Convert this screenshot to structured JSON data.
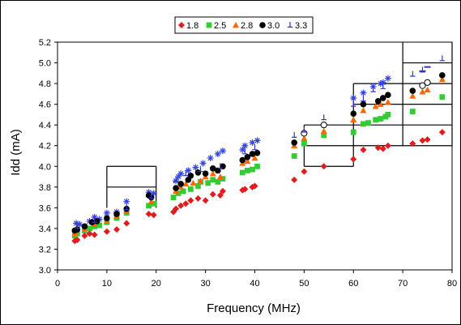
{
  "chart_data": {
    "type": "scatter",
    "title": "",
    "xlabel": "Frequency (MHz)",
    "ylabel": "Idd (mA)",
    "xlim": [
      0,
      80
    ],
    "ylim": [
      3.0,
      5.2
    ],
    "xticks": [
      0,
      10,
      20,
      30,
      40,
      50,
      60,
      70,
      80
    ],
    "yticks": [
      3.0,
      3.2,
      3.4,
      3.6,
      3.8,
      4.0,
      4.2,
      4.4,
      4.6,
      4.8,
      5.0,
      5.2
    ],
    "xtick_labels": [
      "0",
      "10",
      "20",
      "30",
      "40",
      "50",
      "60",
      "70",
      "80"
    ],
    "ytick_labels": [
      "3.0",
      "3.2",
      "3.4",
      "3.6",
      "3.8",
      "4.0",
      "4.2",
      "4.4",
      "4.6",
      "4.8",
      "5.0",
      "5.2"
    ],
    "grid": "partial staircase",
    "legend_position": "top",
    "colors": {
      "s18": "#e41a1c",
      "s25": "#33cc33",
      "s28": "#ff6600",
      "s30": "#000000",
      "s33": "#3333cc",
      "s33b": "#3344dd"
    },
    "series": [
      {
        "name": "1.8",
        "marker": "diamond",
        "color": "#e41a1c",
        "points": [
          [
            3.5,
            3.28
          ],
          [
            4,
            3.29
          ],
          [
            5.5,
            3.33
          ],
          [
            6.5,
            3.35
          ],
          [
            7.5,
            3.34
          ],
          [
            10,
            3.37
          ],
          [
            12,
            3.39
          ],
          [
            14,
            3.45
          ],
          [
            18.5,
            3.54
          ],
          [
            19.5,
            3.53
          ],
          [
            23.5,
            3.56
          ],
          [
            24,
            3.59
          ],
          [
            25,
            3.62
          ],
          [
            26,
            3.64
          ],
          [
            27,
            3.67
          ],
          [
            28.5,
            3.69
          ],
          [
            30,
            3.67
          ],
          [
            31.5,
            3.73
          ],
          [
            33,
            3.72
          ],
          [
            33.5,
            3.76
          ],
          [
            37.5,
            3.77
          ],
          [
            38,
            3.78
          ],
          [
            39.5,
            3.8
          ],
          [
            40,
            3.81
          ],
          [
            48,
            3.87
          ],
          [
            50,
            3.95
          ],
          [
            54,
            4.0
          ],
          [
            60,
            4.07
          ],
          [
            62,
            4.16
          ],
          [
            65,
            4.18
          ],
          [
            66,
            4.17
          ],
          [
            67,
            4.2
          ],
          [
            72,
            4.22
          ],
          [
            74,
            4.25
          ],
          [
            75,
            4.26
          ],
          [
            78,
            4.33
          ]
        ]
      },
      {
        "name": "2.5",
        "marker": "square",
        "color": "#33cc33",
        "points": [
          [
            3.5,
            3.33
          ],
          [
            4,
            3.35
          ],
          [
            5.5,
            3.38
          ],
          [
            6.5,
            3.4
          ],
          [
            7.5,
            3.42
          ],
          [
            8.5,
            3.43
          ],
          [
            10,
            3.46
          ],
          [
            12,
            3.5
          ],
          [
            14,
            3.55
          ],
          [
            18.5,
            3.62
          ],
          [
            19.5,
            3.64
          ],
          [
            23.5,
            3.7
          ],
          [
            24.5,
            3.74
          ],
          [
            25.5,
            3.76
          ],
          [
            27,
            3.78
          ],
          [
            28.5,
            3.81
          ],
          [
            29,
            3.85
          ],
          [
            30.5,
            3.84
          ],
          [
            31.5,
            3.87
          ],
          [
            32.5,
            3.85
          ],
          [
            33.5,
            3.88
          ],
          [
            37.5,
            3.94
          ],
          [
            38.5,
            3.96
          ],
          [
            39.5,
            3.97
          ],
          [
            40.5,
            4.0
          ],
          [
            48,
            4.1
          ],
          [
            50,
            4.22
          ],
          [
            54,
            4.3
          ],
          [
            60,
            4.33
          ],
          [
            62,
            4.41
          ],
          [
            63,
            4.42
          ],
          [
            64.5,
            4.45
          ],
          [
            65.5,
            4.46
          ],
          [
            66.5,
            4.48
          ],
          [
            67,
            4.5
          ],
          [
            72,
            4.53
          ],
          [
            78,
            4.67
          ]
        ]
      },
      {
        "name": "2.8",
        "marker": "triangle",
        "color": "#ff6600",
        "points": [
          [
            3.5,
            3.35
          ],
          [
            5.5,
            3.4
          ],
          [
            7.5,
            3.44
          ],
          [
            10,
            3.47
          ],
          [
            12,
            3.52
          ],
          [
            14,
            3.57
          ],
          [
            19,
            3.66
          ],
          [
            24,
            3.76
          ],
          [
            25,
            3.8
          ],
          [
            26,
            3.83
          ],
          [
            27.5,
            3.84
          ],
          [
            29,
            3.86
          ],
          [
            30,
            3.9
          ],
          [
            31.5,
            3.93
          ],
          [
            33,
            3.9
          ],
          [
            37.5,
            4.03
          ],
          [
            38.5,
            4.05
          ],
          [
            40,
            4.08
          ],
          [
            48,
            4.2
          ],
          [
            50,
            4.27
          ],
          [
            54,
            4.34
          ],
          [
            60,
            4.45
          ],
          [
            62,
            4.54
          ],
          [
            64.5,
            4.58
          ],
          [
            65.5,
            4.6
          ],
          [
            67,
            4.62
          ],
          [
            72,
            4.68
          ],
          [
            74,
            4.72
          ],
          [
            75,
            4.74
          ],
          [
            78,
            4.84
          ]
        ]
      },
      {
        "name": "3.0",
        "marker": "circle",
        "color": "#000000",
        "points": [
          [
            3.5,
            3.38
          ],
          [
            4,
            3.39
          ],
          [
            5.5,
            3.42
          ],
          [
            7,
            3.46
          ],
          [
            8,
            3.47
          ],
          [
            10,
            3.5
          ],
          [
            12,
            3.54
          ],
          [
            14,
            3.59
          ],
          [
            18.5,
            3.72
          ],
          [
            19,
            3.7
          ],
          [
            24,
            3.79
          ],
          [
            25,
            3.83
          ],
          [
            26.5,
            3.87
          ],
          [
            27,
            3.91
          ],
          [
            28.5,
            3.94
          ],
          [
            30,
            3.93
          ],
          [
            31.5,
            3.98
          ],
          [
            32.5,
            3.96
          ],
          [
            33.5,
            4.0
          ],
          [
            37.5,
            4.06
          ],
          [
            38.5,
            4.09
          ],
          [
            39.5,
            4.12
          ],
          [
            40.5,
            4.13
          ],
          [
            48,
            4.23
          ],
          [
            54,
            4.4
          ],
          [
            60,
            4.51
          ],
          [
            62,
            4.6
          ],
          [
            65,
            4.63
          ],
          [
            66,
            4.66
          ],
          [
            67,
            4.69
          ],
          [
            72,
            4.73
          ],
          [
            78,
            4.88
          ]
        ]
      },
      {
        "name": "3.0 (hollow)",
        "marker": "circle-open",
        "color": "#000000",
        "points": [
          [
            50,
            4.32
          ],
          [
            54,
            4.4
          ],
          [
            74,
            4.78
          ],
          [
            75,
            4.81
          ]
        ]
      },
      {
        "name": "3.3",
        "marker": "perp",
        "color": "#3333cc",
        "points": [
          [
            4,
            3.42
          ],
          [
            7.5,
            3.48
          ],
          [
            14,
            3.6
          ],
          [
            19,
            3.71
          ],
          [
            24,
            3.87
          ],
          [
            26,
            3.93
          ],
          [
            29,
            3.97
          ],
          [
            33,
            4.0
          ],
          [
            38,
            4.14
          ],
          [
            40,
            4.18
          ],
          [
            48,
            4.3
          ],
          [
            50,
            4.35
          ],
          [
            54,
            4.47
          ],
          [
            60,
            4.6
          ],
          [
            62,
            4.65
          ],
          [
            64,
            4.74
          ],
          [
            66,
            4.77
          ],
          [
            72,
            4.89
          ],
          [
            74,
            4.93
          ],
          [
            78,
            5.04
          ]
        ]
      },
      {
        "name": "3.3 (star)",
        "marker": "star",
        "color": "#3344dd",
        "points": [
          [
            3.8,
            3.45
          ],
          [
            4.5,
            3.44
          ],
          [
            6.5,
            3.47
          ],
          [
            7.5,
            3.51
          ],
          [
            8.5,
            3.49
          ],
          [
            10,
            3.55
          ],
          [
            12,
            3.56
          ],
          [
            14,
            3.66
          ],
          [
            18.5,
            3.75
          ],
          [
            19.5,
            3.74
          ],
          [
            24,
            3.86
          ],
          [
            24.5,
            3.9
          ],
          [
            25,
            3.93
          ],
          [
            26.5,
            3.96
          ],
          [
            28,
            3.99
          ],
          [
            29.5,
            4.03
          ],
          [
            31,
            4.08
          ],
          [
            32.5,
            4.12
          ],
          [
            33.5,
            4.15
          ],
          [
            37.5,
            4.16
          ],
          [
            38,
            4.2
          ],
          [
            39.5,
            4.23
          ],
          [
            40.5,
            4.25
          ],
          [
            60,
            4.66
          ],
          [
            62,
            4.71
          ],
          [
            64,
            4.77
          ],
          [
            65.5,
            4.8
          ],
          [
            66,
            4.81
          ],
          [
            67,
            4.85
          ]
        ]
      },
      {
        "name": "3.3 (dash)",
        "marker": "dash",
        "color": "#3333cc",
        "points": [
          [
            74,
            4.92
          ],
          [
            75,
            4.96
          ]
        ]
      }
    ],
    "legend": [
      {
        "label": "1.8",
        "marker": "diamond",
        "color": "#e41a1c"
      },
      {
        "label": "2.5",
        "marker": "square",
        "color": "#33cc33"
      },
      {
        "label": "2.8",
        "marker": "triangle",
        "color": "#ff6600"
      },
      {
        "label": "3.0",
        "marker": "circle",
        "color": "#000000"
      },
      {
        "label": "3.3",
        "marker": "perp",
        "color": "#3333cc"
      }
    ],
    "grid_vlines": [
      {
        "x": 10,
        "y0": 3.6,
        "y1": 3.8
      },
      {
        "x": 10,
        "y0": 3.8,
        "y1": 4.0
      },
      {
        "x": 20,
        "y0": 3.6,
        "y1": 4.0
      },
      {
        "x": 50,
        "y0": 4.0,
        "y1": 4.4
      },
      {
        "x": 60,
        "y0": 4.0,
        "y1": 4.8
      },
      {
        "x": 70,
        "y0": 4.2,
        "y1": 5.2
      },
      {
        "x": 80,
        "y0": 4.2,
        "y1": 5.2
      }
    ],
    "grid_hlines": [
      {
        "y": 3.8,
        "x0": 10,
        "x1": 20
      },
      {
        "y": 4.0,
        "x0": 10,
        "x1": 20
      },
      {
        "y": 4.0,
        "x0": 50,
        "x1": 60
      },
      {
        "y": 4.2,
        "x0": 50,
        "x1": 80
      },
      {
        "y": 4.4,
        "x0": 50,
        "x1": 80
      },
      {
        "y": 4.6,
        "x0": 60,
        "x1": 80
      },
      {
        "y": 4.8,
        "x0": 60,
        "x1": 80
      },
      {
        "y": 5.0,
        "x0": 70,
        "x1": 80
      }
    ]
  }
}
